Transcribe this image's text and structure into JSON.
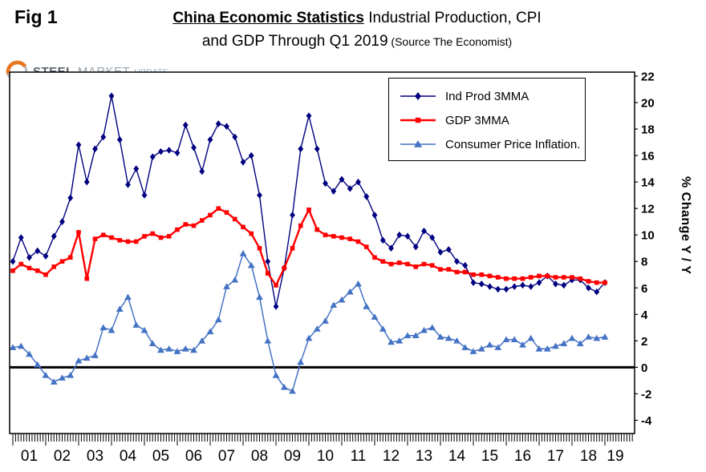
{
  "fig_label": "Fig 1",
  "header": {
    "title_bold": "China Economic Statistics",
    "title_rest": "  Industrial Production, CPI",
    "title_line2": "and GDP Through Q1 2019",
    "title_source": " (Source The Economist)"
  },
  "logo": {
    "word1": "STEEL",
    "word2": "MARKET",
    "word3": "UPDATE",
    "accent_color": "#e87722"
  },
  "chart_data": {
    "type": "line",
    "title": "China Economic Statistics  Industrial Production, CPI and GDP Through Q1 2019",
    "source": "The Economist",
    "ylabel": "% Change Y / Y",
    "ylim": [
      -4,
      22
    ],
    "ytick_step": 2,
    "grid": false,
    "zero_line": true,
    "legend_position": "top-center",
    "x_tick_labels": [
      "01",
      "02",
      "03",
      "04",
      "05",
      "06",
      "07",
      "08",
      "09",
      "10",
      "11",
      "12",
      "13",
      "14",
      "15",
      "16",
      "17",
      "18",
      "19"
    ],
    "x": [
      2001.0,
      2001.25,
      2001.5,
      2001.75,
      2002.0,
      2002.25,
      2002.5,
      2002.75,
      2003.0,
      2003.25,
      2003.5,
      2003.75,
      2004.0,
      2004.25,
      2004.5,
      2004.75,
      2005.0,
      2005.25,
      2005.5,
      2005.75,
      2006.0,
      2006.25,
      2006.5,
      2006.75,
      2007.0,
      2007.25,
      2007.5,
      2007.75,
      2008.0,
      2008.25,
      2008.5,
      2008.75,
      2009.0,
      2009.25,
      2009.5,
      2009.75,
      2010.0,
      2010.25,
      2010.5,
      2010.75,
      2011.0,
      2011.25,
      2011.5,
      2011.75,
      2012.0,
      2012.25,
      2012.5,
      2012.75,
      2013.0,
      2013.25,
      2013.5,
      2013.75,
      2014.0,
      2014.25,
      2014.5,
      2014.75,
      2015.0,
      2015.25,
      2015.5,
      2015.75,
      2016.0,
      2016.25,
      2016.5,
      2016.75,
      2017.0,
      2017.25,
      2017.5,
      2017.75,
      2018.0,
      2018.25,
      2018.5,
      2018.75,
      2019.0
    ],
    "series": [
      {
        "name": "Ind Prod 3MMA",
        "color": "#000080",
        "marker": "diamond",
        "values": [
          8.0,
          9.8,
          8.3,
          8.8,
          8.4,
          9.9,
          11.0,
          12.8,
          16.8,
          14.0,
          16.5,
          17.4,
          20.5,
          17.2,
          13.8,
          15.0,
          13.0,
          15.9,
          16.3,
          16.4,
          16.2,
          18.3,
          16.6,
          14.8,
          17.2,
          18.4,
          18.2,
          17.4,
          15.5,
          16.0,
          13.0,
          8.0,
          4.6,
          7.5,
          11.5,
          16.5,
          19.0,
          16.5,
          13.9,
          13.3,
          14.2,
          13.5,
          14.0,
          12.9,
          11.5,
          9.6,
          9.0,
          10.0,
          9.9,
          9.1,
          10.3,
          9.8,
          8.7,
          8.9,
          8.0,
          7.7,
          6.4,
          6.3,
          6.1,
          5.9,
          5.9,
          6.1,
          6.2,
          6.1,
          6.4,
          6.9,
          6.3,
          6.2,
          6.6,
          6.6,
          6.0,
          5.7,
          6.4
        ]
      },
      {
        "name": "GDP 3MMA",
        "color": "#ff0000",
        "marker": "square",
        "values": [
          7.3,
          7.8,
          7.5,
          7.3,
          7.0,
          7.6,
          8.0,
          8.3,
          10.2,
          6.7,
          9.7,
          10.0,
          9.8,
          9.6,
          9.5,
          9.5,
          9.9,
          10.1,
          9.8,
          9.9,
          10.4,
          10.8,
          10.7,
          11.1,
          11.5,
          12.0,
          11.7,
          11.2,
          10.6,
          10.1,
          9.0,
          7.1,
          6.2,
          7.5,
          9.0,
          10.7,
          11.9,
          10.4,
          10.0,
          9.9,
          9.8,
          9.7,
          9.5,
          9.1,
          8.3,
          8.0,
          7.8,
          7.9,
          7.8,
          7.6,
          7.8,
          7.7,
          7.4,
          7.4,
          7.2,
          7.2,
          7.0,
          7.0,
          6.9,
          6.8,
          6.7,
          6.7,
          6.7,
          6.8,
          6.9,
          6.9,
          6.8,
          6.8,
          6.8,
          6.7,
          6.5,
          6.4,
          6.4
        ]
      },
      {
        "name": "Consumer Price Inflation.",
        "color": "#4472c4",
        "marker": "triangle",
        "values": [
          1.5,
          1.6,
          1.0,
          0.2,
          -0.6,
          -1.1,
          -0.8,
          -0.6,
          0.5,
          0.7,
          0.9,
          3.0,
          2.8,
          4.4,
          5.3,
          3.2,
          2.8,
          1.8,
          1.3,
          1.4,
          1.2,
          1.4,
          1.3,
          2.0,
          2.7,
          3.6,
          6.1,
          6.6,
          8.6,
          7.7,
          5.3,
          2.0,
          -0.6,
          -1.5,
          -1.8,
          0.4,
          2.2,
          2.9,
          3.5,
          4.7,
          5.1,
          5.7,
          6.3,
          4.6,
          3.8,
          2.9,
          1.9,
          2.0,
          2.4,
          2.4,
          2.8,
          3.0,
          2.3,
          2.2,
          2.0,
          1.5,
          1.2,
          1.4,
          1.7,
          1.5,
          2.1,
          2.1,
          1.7,
          2.2,
          1.4,
          1.4,
          1.6,
          1.8,
          2.2,
          1.8,
          2.3,
          2.2,
          2.3
        ]
      }
    ]
  }
}
